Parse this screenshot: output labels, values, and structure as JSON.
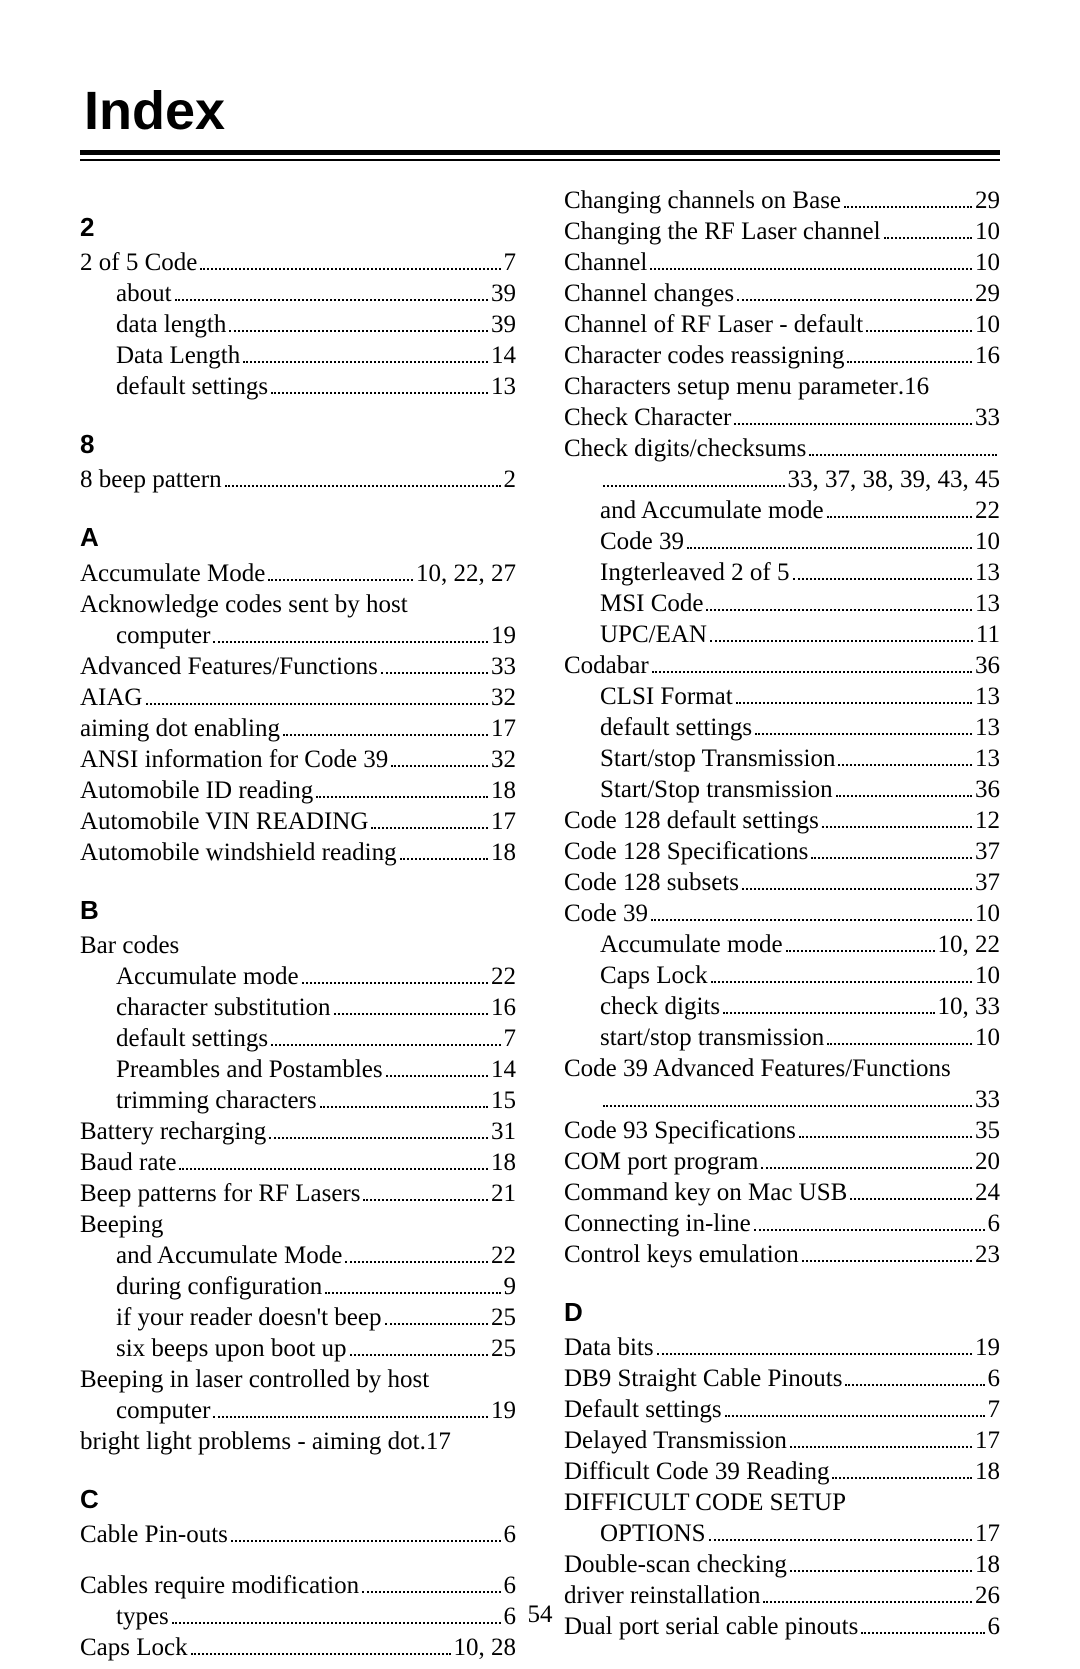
{
  "title": "Index",
  "page_number": "54",
  "left": [
    {
      "type": "head",
      "text": "2"
    },
    {
      "type": "entry",
      "term": "2 of 5 Code",
      "pages": "7"
    },
    {
      "type": "entry",
      "sub": 1,
      "term": "about",
      "pages": "39"
    },
    {
      "type": "entry",
      "sub": 1,
      "term": "data length",
      "pages": "39"
    },
    {
      "type": "entry",
      "sub": 1,
      "term": "Data Length",
      "pages": "14"
    },
    {
      "type": "entry",
      "sub": 1,
      "term": "default settings",
      "pages": "13"
    },
    {
      "type": "head",
      "text": "8"
    },
    {
      "type": "entry",
      "term": "8 beep pattern",
      "pages": "2"
    },
    {
      "type": "head",
      "text": "A"
    },
    {
      "type": "entry",
      "term": "Accumulate Mode",
      "pages": "10, 22, 27"
    },
    {
      "type": "cont",
      "term": "Acknowledge codes sent by host"
    },
    {
      "type": "entry",
      "sub": 1,
      "term": "computer",
      "pages": "19"
    },
    {
      "type": "entry",
      "term": "Advanced Features/Functions",
      "pages": "33"
    },
    {
      "type": "entry",
      "term": "AIAG",
      "pages": "32"
    },
    {
      "type": "entry",
      "term": "aiming dot enabling",
      "pages": "17"
    },
    {
      "type": "entry",
      "term": "ANSI information for Code 39",
      "pages": "32"
    },
    {
      "type": "entry",
      "term": "Automobile ID reading",
      "pages": "18"
    },
    {
      "type": "entry",
      "term": "Automobile VIN READING",
      "pages": "17"
    },
    {
      "type": "entry",
      "term": "Automobile windshield reading",
      "pages": "18"
    },
    {
      "type": "head",
      "text": "B"
    },
    {
      "type": "cont",
      "term": "Bar codes"
    },
    {
      "type": "entry",
      "sub": 1,
      "term": "Accumulate mode",
      "pages": "22"
    },
    {
      "type": "entry",
      "sub": 1,
      "term": "character substitution",
      "pages": "16"
    },
    {
      "type": "entry",
      "sub": 1,
      "term": "default settings",
      "pages": "7"
    },
    {
      "type": "entry",
      "sub": 1,
      "term": "Preambles and Postambles",
      "pages": "14"
    },
    {
      "type": "entry",
      "sub": 1,
      "term": "trimming characters",
      "pages": "15"
    },
    {
      "type": "entry",
      "term": "Battery recharging",
      "pages": "31"
    },
    {
      "type": "entry",
      "term": "Baud rate",
      "pages": "18"
    },
    {
      "type": "entry",
      "term": "Beep patterns for RF Lasers",
      "pages": "21"
    },
    {
      "type": "cont",
      "term": "Beeping"
    },
    {
      "type": "entry",
      "sub": 1,
      "term": "and Accumulate Mode",
      "pages": "22"
    },
    {
      "type": "entry",
      "sub": 1,
      "term": "during configuration",
      "pages": "9"
    },
    {
      "type": "entry",
      "sub": 1,
      "term": "if your reader doesn't beep",
      "pages": "25"
    },
    {
      "type": "entry",
      "sub": 1,
      "term": "six beeps upon boot up",
      "pages": "25"
    },
    {
      "type": "cont",
      "term": "Beeping in laser controlled by host"
    },
    {
      "type": "entry",
      "sub": 1,
      "term": "computer",
      "pages": "19"
    },
    {
      "type": "entry",
      "term": "bright light problems - aiming dot",
      "pages": "17",
      "tight": true
    },
    {
      "type": "head",
      "text": "C"
    },
    {
      "type": "entry",
      "term": "Cable Pin-outs",
      "pages": "6"
    },
    {
      "type": "spacer"
    },
    {
      "type": "entry",
      "term": "Cables require modification",
      "pages": "6"
    },
    {
      "type": "entry",
      "sub": 1,
      "term": "types",
      "pages": "6"
    },
    {
      "type": "entry",
      "term": "Caps Lock",
      "pages": "10, 28"
    }
  ],
  "right": [
    {
      "type": "entry",
      "term": "Changing channels on Base",
      "pages": "29"
    },
    {
      "type": "entry",
      "term": "Changing the RF Laser channel",
      "pages": "10"
    },
    {
      "type": "entry",
      "term": "Channel",
      "pages": "10"
    },
    {
      "type": "entry",
      "term": "Channel changes",
      "pages": "29"
    },
    {
      "type": "entry",
      "term": "Channel of RF Laser - default",
      "pages": "10"
    },
    {
      "type": "entry",
      "term": "Character codes reassigning",
      "pages": "16"
    },
    {
      "type": "entry",
      "term": "Characters setup menu parameter",
      "pages": "16",
      "tight": true
    },
    {
      "type": "entry",
      "term": "Check Character",
      "pages": "33"
    },
    {
      "type": "entry",
      "term": "Check digits/checksums",
      "pages": "",
      "trail": true
    },
    {
      "type": "entry",
      "sub": 1,
      "term": "",
      "pages": "33, 37, 38, 39, 43, 45"
    },
    {
      "type": "entry",
      "sub": 1,
      "term": "and Accumulate mode",
      "pages": "22"
    },
    {
      "type": "entry",
      "sub": 1,
      "term": "Code 39",
      "pages": "10"
    },
    {
      "type": "entry",
      "sub": 1,
      "term": "Ingterleaved 2 of 5",
      "pages": "13"
    },
    {
      "type": "entry",
      "sub": 1,
      "term": "MSI Code",
      "pages": "13"
    },
    {
      "type": "entry",
      "sub": 1,
      "term": "UPC/EAN",
      "pages": "11"
    },
    {
      "type": "entry",
      "term": "Codabar",
      "pages": "36"
    },
    {
      "type": "entry",
      "sub": 1,
      "term": "CLSI Format",
      "pages": "13"
    },
    {
      "type": "entry",
      "sub": 1,
      "term": "default settings",
      "pages": "13"
    },
    {
      "type": "entry",
      "sub": 1,
      "term": "Start/stop Transmission",
      "pages": "13"
    },
    {
      "type": "entry",
      "sub": 1,
      "term": "Start/Stop transmission",
      "pages": "36"
    },
    {
      "type": "entry",
      "term": "Code 128 default settings",
      "pages": "12"
    },
    {
      "type": "entry",
      "term": "Code 128 Specifications",
      "pages": "37"
    },
    {
      "type": "entry",
      "term": "Code 128 subsets",
      "pages": "37"
    },
    {
      "type": "entry",
      "term": "Code 39",
      "pages": "10"
    },
    {
      "type": "entry",
      "sub": 1,
      "term": "Accumulate mode",
      "pages": "10, 22"
    },
    {
      "type": "entry",
      "sub": 1,
      "term": "Caps Lock",
      "pages": "10"
    },
    {
      "type": "entry",
      "sub": 1,
      "term": "check digits",
      "pages": "10, 33"
    },
    {
      "type": "entry",
      "sub": 1,
      "term": "start/stop transmission",
      "pages": "10"
    },
    {
      "type": "cont",
      "term": "Code 39 Advanced Features/Functions"
    },
    {
      "type": "entry",
      "sub": 1,
      "term": "",
      "pages": "33"
    },
    {
      "type": "entry",
      "term": "Code 93 Specifications",
      "pages": "35"
    },
    {
      "type": "entry",
      "term": "COM port program",
      "pages": "20"
    },
    {
      "type": "entry",
      "term": "Command key on Mac USB",
      "pages": "24"
    },
    {
      "type": "entry",
      "term": "Connecting in-line",
      "pages": "6"
    },
    {
      "type": "entry",
      "term": "Control keys emulation",
      "pages": "23"
    },
    {
      "type": "head",
      "text": "D"
    },
    {
      "type": "entry",
      "term": "Data bits",
      "pages": "19"
    },
    {
      "type": "entry",
      "term": "DB9 Straight Cable Pinouts",
      "pages": "6"
    },
    {
      "type": "entry",
      "term": "Default settings",
      "pages": "7"
    },
    {
      "type": "entry",
      "term": "Delayed Transmission",
      "pages": "17"
    },
    {
      "type": "entry",
      "term": "Difficult Code 39 Reading",
      "pages": "18"
    },
    {
      "type": "cont",
      "term": "DIFFICULT CODE SETUP"
    },
    {
      "type": "entry",
      "sub": 1,
      "term": "OPTIONS",
      "pages": "17"
    },
    {
      "type": "entry",
      "term": "Double-scan checking",
      "pages": "18"
    },
    {
      "type": "entry",
      "term": "driver reinstallation",
      "pages": "26"
    },
    {
      "type": "entry",
      "term": "Dual port serial cable pinouts",
      "pages": "6"
    }
  ]
}
